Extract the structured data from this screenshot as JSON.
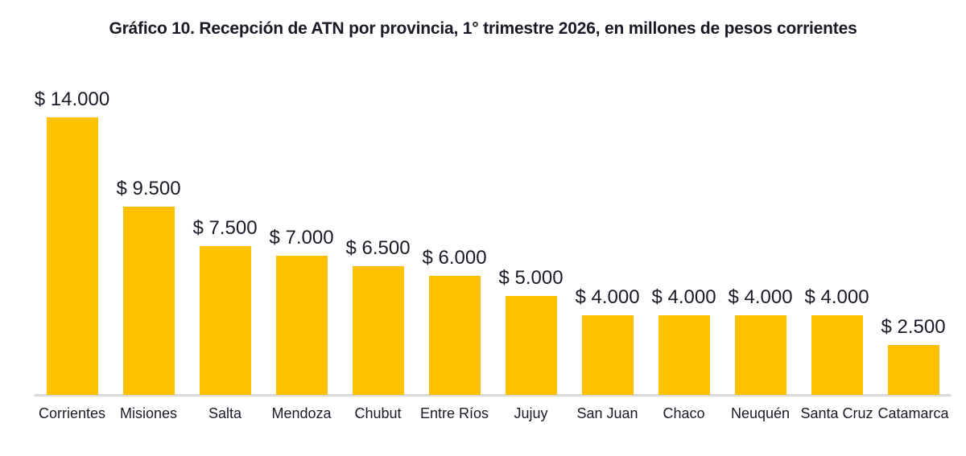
{
  "page": {
    "background": "#FFFFFF"
  },
  "chart_data": {
    "type": "bar",
    "title": "Gráfico 10. Recepción de ATN por provincia, 1° trimestre 2026, en millones de pesos corrientes",
    "categories": [
      "Corrientes",
      "Misiones",
      "Salta",
      "Mendoza",
      "Chubut",
      "Entre Ríos",
      "Jujuy",
      "San Juan",
      "Chaco",
      "Neuquén",
      "Santa Cruz",
      "Catamarca"
    ],
    "values": [
      14000,
      9500,
      7500,
      7000,
      6500,
      6000,
      5000,
      4000,
      4000,
      4000,
      4000,
      2500
    ],
    "value_labels": [
      "$ 14.000",
      "$ 9.500",
      "$ 7.500",
      "$ 7.000",
      "$ 6.500",
      "$ 6.000",
      "$ 5.000",
      "$ 4.000",
      "$ 4.000",
      "$ 4.000",
      "$ 4.000",
      "$ 2.500"
    ],
    "xlabel": "",
    "ylabel": "",
    "ylim": [
      0,
      14000
    ],
    "grid": false,
    "legend": false,
    "bar_color": "#FFC000",
    "axis_line_color": "#D9D9D9",
    "text_color": "#1A1A26"
  }
}
